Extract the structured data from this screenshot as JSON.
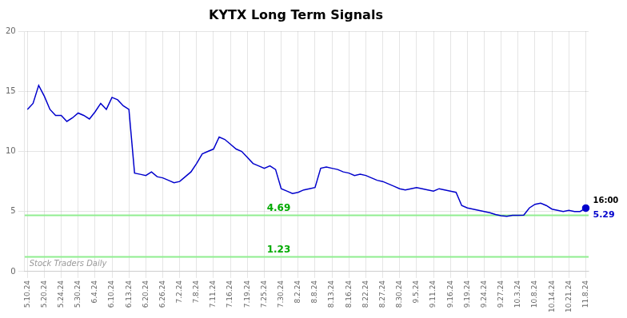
{
  "chart_data": {
    "type": "line",
    "title": "KYTX Long Term Signals",
    "color": "#0000cc",
    "marker": "last",
    "grid": true,
    "ylim": [
      0,
      20
    ],
    "yticks": [
      0,
      5,
      10,
      15,
      20
    ],
    "categories": [
      "5.10.24",
      null,
      null,
      "5.20.24",
      null,
      null,
      "5.24.24",
      null,
      null,
      "5.30.24",
      null,
      null,
      "6.4.24",
      null,
      null,
      "6.10.24",
      null,
      null,
      "6.13.24",
      null,
      null,
      "6.20.24",
      null,
      null,
      "6.26.24",
      null,
      null,
      "7.2.24",
      null,
      null,
      "7.8.24",
      null,
      null,
      "7.11.24",
      null,
      null,
      "7.16.24",
      null,
      null,
      "7.19.24",
      null,
      null,
      "7.25.24",
      null,
      null,
      "7.30.24",
      null,
      null,
      "8.2.24",
      null,
      null,
      "8.8.24",
      null,
      null,
      "8.13.24",
      null,
      null,
      "8.16.24",
      null,
      null,
      "8.22.24",
      null,
      null,
      "8.27.24",
      null,
      null,
      "8.30.24",
      null,
      null,
      "9.5.24",
      null,
      null,
      "9.11.24",
      null,
      null,
      "9.16.24",
      null,
      null,
      "9.19.24",
      null,
      null,
      "9.24.24",
      null,
      null,
      "9.27.24",
      null,
      null,
      "10.3.24",
      null,
      null,
      "10.8.24",
      null,
      null,
      "10.14.24",
      null,
      null,
      "10.21.24",
      null,
      null,
      "11.8.24"
    ],
    "values": [
      13.5,
      14.0,
      15.5,
      14.6,
      13.5,
      13.0,
      13.0,
      12.5,
      12.8,
      13.2,
      13.0,
      12.7,
      13.3,
      14.0,
      13.5,
      14.5,
      14.3,
      13.8,
      13.5,
      8.2,
      8.1,
      8.0,
      8.3,
      7.9,
      7.8,
      7.6,
      7.4,
      7.5,
      7.9,
      8.3,
      9.0,
      9.8,
      10.0,
      10.2,
      11.2,
      11.0,
      10.6,
      10.2,
      10.0,
      9.5,
      9.0,
      8.8,
      8.6,
      8.8,
      8.5,
      6.9,
      6.7,
      6.5,
      6.6,
      6.8,
      6.9,
      7.0,
      8.6,
      8.7,
      8.6,
      8.5,
      8.3,
      8.2,
      8.0,
      8.1,
      8.0,
      7.8,
      7.6,
      7.5,
      7.3,
      7.1,
      6.9,
      6.8,
      6.9,
      7.0,
      6.9,
      6.8,
      6.7,
      6.9,
      6.8,
      6.7,
      6.6,
      5.5,
      5.3,
      5.2,
      5.1,
      5.0,
      4.9,
      4.75,
      4.65,
      4.6,
      4.68,
      4.68,
      4.7,
      5.3,
      5.6,
      5.7,
      5.5,
      5.2,
      5.1,
      5.0,
      5.1,
      5.0,
      5.0,
      5.29
    ],
    "hlines": [
      {
        "value": 4.69,
        "label": "4.69",
        "color": "#90EE90",
        "label_color": "#00aa00"
      },
      {
        "value": 1.23,
        "label": "1.23",
        "color": "#90EE90",
        "label_color": "#00aa00"
      }
    ],
    "annotations": [
      {
        "text": "16:00",
        "anchor": "last_point_above",
        "color": "#000000"
      },
      {
        "text": "5.29",
        "anchor": "last_point_below",
        "color": "#0000cc"
      },
      {
        "text": "Stock Traders Daily",
        "anchor": "bottom left",
        "color": "#999999"
      }
    ]
  }
}
